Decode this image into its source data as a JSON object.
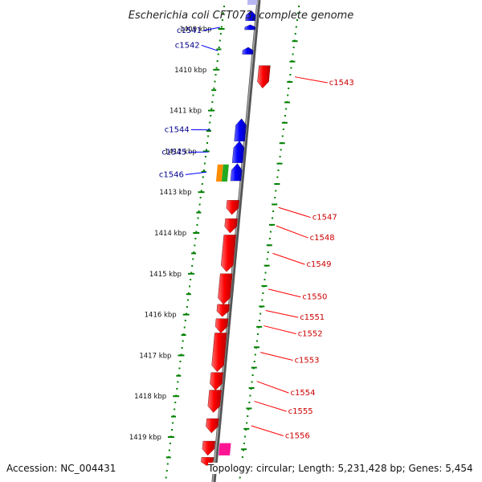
{
  "title": "Escherichia coli CFT073, complete genome",
  "colors": {
    "forward": "#0000ff",
    "reverse": "#ff0000",
    "forward_label": "#00008b",
    "reverse_label": "#cc0000",
    "ticks": "#008000",
    "backbone": "#808080",
    "rrna": "#ff8c00",
    "trna": "#22aa22",
    "misc": "#ff1493"
  },
  "kbp_ticks": [
    "1409 kbp",
    "1410 kbp",
    "1411 kbp",
    "1412 kbp",
    "1413 kbp",
    "1414 kbp",
    "1415 kbp",
    "1416 kbp",
    "1417 kbp",
    "1418 kbp",
    "1419 kbp"
  ],
  "forward_genes": [
    {
      "label": "c1541",
      "gene_start_kbp": 1408.9,
      "gene_end_kbp": 1409.02,
      "label_kbp": 1409.02
    },
    {
      "label": "c1542",
      "gene_start_kbp": 1409.45,
      "gene_end_kbp": 1409.62,
      "label_kbp": 1409.38
    },
    {
      "label": "c1544",
      "gene_start_kbp": 1411.2,
      "gene_end_kbp": 1411.75,
      "label_kbp": 1411.45
    },
    {
      "label": "c1545",
      "gene_start_kbp": 1411.75,
      "gene_end_kbp": 1412.28,
      "label_kbp": 1412.0
    },
    {
      "label": "c1546",
      "gene_start_kbp": 1412.3,
      "gene_end_kbp": 1412.72,
      "label_kbp": 1412.55
    }
  ],
  "extra_forward_segments": [
    {
      "start_kbp": 1408.55,
      "end_kbp": 1408.8
    }
  ],
  "reverse_genes": [
    {
      "label": "c1543",
      "gene_start_kbp": 1409.9,
      "gene_end_kbp": 1410.45,
      "label_kbp": 1410.3
    },
    {
      "label": "c1547",
      "gene_start_kbp": 1413.2,
      "gene_end_kbp": 1413.55,
      "label_kbp": 1413.6
    },
    {
      "label": "c1548",
      "gene_start_kbp": 1413.65,
      "gene_end_kbp": 1414.0,
      "label_kbp": 1414.1
    },
    {
      "label": "c1549",
      "gene_start_kbp": 1414.05,
      "gene_end_kbp": 1414.95,
      "label_kbp": 1414.75
    },
    {
      "label": "c1550",
      "gene_start_kbp": 1415.0,
      "gene_end_kbp": 1415.75,
      "label_kbp": 1415.55
    },
    {
      "label": "c1551",
      "gene_start_kbp": 1415.75,
      "gene_end_kbp": 1416.05,
      "label_kbp": 1416.05
    },
    {
      "label": "c1552",
      "gene_start_kbp": 1416.1,
      "gene_end_kbp": 1416.45,
      "label_kbp": 1416.45
    },
    {
      "label": "c1553",
      "gene_start_kbp": 1416.45,
      "gene_end_kbp": 1417.4,
      "label_kbp": 1417.1
    },
    {
      "label": "c1554",
      "gene_start_kbp": 1417.42,
      "gene_end_kbp": 1417.85,
      "label_kbp": 1417.9
    },
    {
      "label": "c1555",
      "gene_start_kbp": 1417.85,
      "gene_end_kbp": 1418.4,
      "label_kbp": 1418.35
    },
    {
      "label": "c1556",
      "gene_start_kbp": 1418.55,
      "gene_end_kbp": 1418.9,
      "label_kbp": 1418.95
    }
  ],
  "extra_reverse_segments": [
    {
      "start_kbp": 1419.1,
      "end_kbp": 1419.45
    },
    {
      "start_kbp": 1419.5,
      "end_kbp": 1419.7
    }
  ],
  "rna_features": [
    {
      "type": "rrna",
      "start_kbp": 1412.32,
      "end_kbp": 1412.74
    },
    {
      "type": "trna",
      "start_kbp": 1412.32,
      "end_kbp": 1412.74
    }
  ],
  "misc_features": [
    {
      "start_kbp": 1419.15,
      "end_kbp": 1419.45
    }
  ],
  "footer": {
    "accession": "Accession: NC_004431",
    "summary": "Topology: circular; Length: 5,231,428 bp; Genes: 5,454"
  }
}
